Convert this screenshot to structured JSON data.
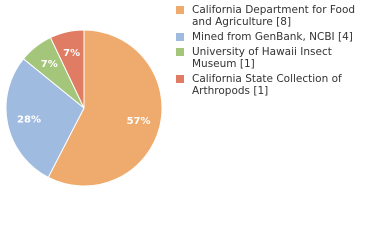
{
  "chart_data": {
    "type": "pie",
    "categories": [
      "California Department for Food and Agriculture [8]",
      "Mined from GenBank, NCBI [4]",
      "University of Hawaii Insect Museum [1]",
      "California State Collection of Arthropods [1]"
    ],
    "values": [
      57,
      28,
      7,
      7
    ],
    "value_labels": [
      "57%",
      "28%",
      "7%",
      "7%"
    ],
    "colors": [
      "#efaa6e",
      "#a0bbe0",
      "#a4c67b",
      "#e07c63"
    ]
  }
}
